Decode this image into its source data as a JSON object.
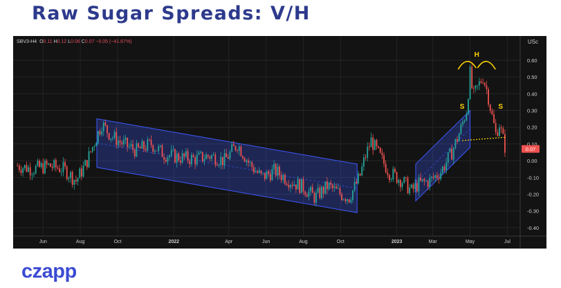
{
  "page": {
    "title": "Raw Sugar Spreads: V/H",
    "logo": "czapp"
  },
  "legend": {
    "symbol": "SBV3-H4",
    "o_label": "O",
    "o_value": "0.11",
    "h_label": "H",
    "h_value": "0.12",
    "l_label": "L",
    "l_value": "0.06",
    "c_label": "C",
    "c_value": "0.07",
    "change": "−0.05 (−41.67%)"
  },
  "currency": "USc",
  "colors": {
    "background": "#131313",
    "up": "#26a69a",
    "down": "#ef5350",
    "channel": "#3d5aff",
    "annotation": "#ffd600",
    "price_tag": "#ef5350"
  },
  "chart_data": {
    "type": "candlestick",
    "title": "Raw Sugar Spreads: V/H",
    "xlabel": "",
    "ylabel": "",
    "x_ticks": [
      "Jun",
      "Aug",
      "Oct",
      "2022",
      "Apr",
      "Jun",
      "Aug",
      "Oct",
      "2023",
      "Mar",
      "May",
      "Jul"
    ],
    "y_ticks": [
      0.6,
      0.5,
      0.4,
      0.3,
      0.2,
      0.1,
      0.0,
      -0.1,
      -0.2,
      -0.3,
      -0.4
    ],
    "ylim": [
      -0.45,
      0.67
    ],
    "last_price": "0.07",
    "grid": true,
    "path_points": [
      [
        "2021-04-20",
        -0.03
      ],
      [
        "2021-05-15",
        -0.05
      ],
      [
        "2021-06-10",
        -0.03
      ],
      [
        "2021-07-05",
        -0.05
      ],
      [
        "2021-07-25",
        -0.12
      ],
      [
        "2021-08-10",
        -0.02
      ],
      [
        "2021-08-25",
        0.12
      ],
      [
        "2021-09-05",
        0.22
      ],
      [
        "2021-09-20",
        0.15
      ],
      [
        "2021-10-10",
        0.1
      ],
      [
        "2021-11-01",
        0.06
      ],
      [
        "2021-11-25",
        0.1
      ],
      [
        "2021-12-15",
        0.04
      ],
      [
        "2022-01-10",
        0.02
      ],
      [
        "2022-02-05",
        0.01
      ],
      [
        "2022-03-01",
        0.03
      ],
      [
        "2022-03-25",
        0.0
      ],
      [
        "2022-04-15",
        0.1
      ],
      [
        "2022-05-05",
        -0.02
      ],
      [
        "2022-05-25",
        -0.1
      ],
      [
        "2022-06-15",
        -0.06
      ],
      [
        "2022-07-10",
        -0.12
      ],
      [
        "2022-08-01",
        -0.16
      ],
      [
        "2022-08-20",
        -0.22
      ],
      [
        "2022-09-10",
        -0.15
      ],
      [
        "2022-10-01",
        -0.2
      ],
      [
        "2022-10-15",
        -0.22
      ],
      [
        "2022-11-01",
        -0.1
      ],
      [
        "2022-11-10",
        0.02
      ],
      [
        "2022-11-20",
        0.12
      ],
      [
        "2022-12-05",
        0.02
      ],
      [
        "2022-12-20",
        -0.07
      ],
      [
        "2023-01-10",
        -0.12
      ],
      [
        "2023-01-25",
        -0.18
      ],
      [
        "2023-02-05",
        -0.14
      ],
      [
        "2023-02-25",
        -0.12
      ],
      [
        "2023-03-15",
        -0.06
      ],
      [
        "2023-04-01",
        0.05
      ],
      [
        "2023-04-15",
        0.18
      ],
      [
        "2023-04-25",
        0.3
      ],
      [
        "2023-05-01",
        0.52
      ],
      [
        "2023-05-06",
        0.38
      ],
      [
        "2023-05-15",
        0.45
      ],
      [
        "2023-05-22",
        0.5
      ],
      [
        "2023-05-30",
        0.4
      ],
      [
        "2023-06-05",
        0.28
      ],
      [
        "2023-06-12",
        0.16
      ],
      [
        "2023-06-18",
        0.22
      ],
      [
        "2023-06-23",
        0.14
      ],
      [
        "2023-06-28",
        0.07
      ]
    ],
    "annotations": [
      {
        "text": "S",
        "date": "2023-04-18",
        "value": 0.31
      },
      {
        "text": "H",
        "date": "2023-05-12",
        "value": 0.62
      },
      {
        "text": "S",
        "date": "2023-06-20",
        "value": 0.31
      }
    ],
    "channels": [
      {
        "corners": [
          [
            "2021-08-28",
            0.25
          ],
          [
            "2022-10-28",
            -0.02
          ],
          [
            "2022-10-28",
            -0.31
          ],
          [
            "2021-08-28",
            -0.04
          ]
        ]
      },
      {
        "corners": [
          [
            "2023-02-01",
            -0.02
          ],
          [
            "2023-05-01",
            0.3
          ],
          [
            "2023-05-01",
            0.08
          ],
          [
            "2023-02-01",
            -0.24
          ]
        ]
      }
    ],
    "neckline": [
      [
        "2023-04-18",
        0.12
      ],
      [
        "2023-06-28",
        0.14
      ]
    ]
  }
}
